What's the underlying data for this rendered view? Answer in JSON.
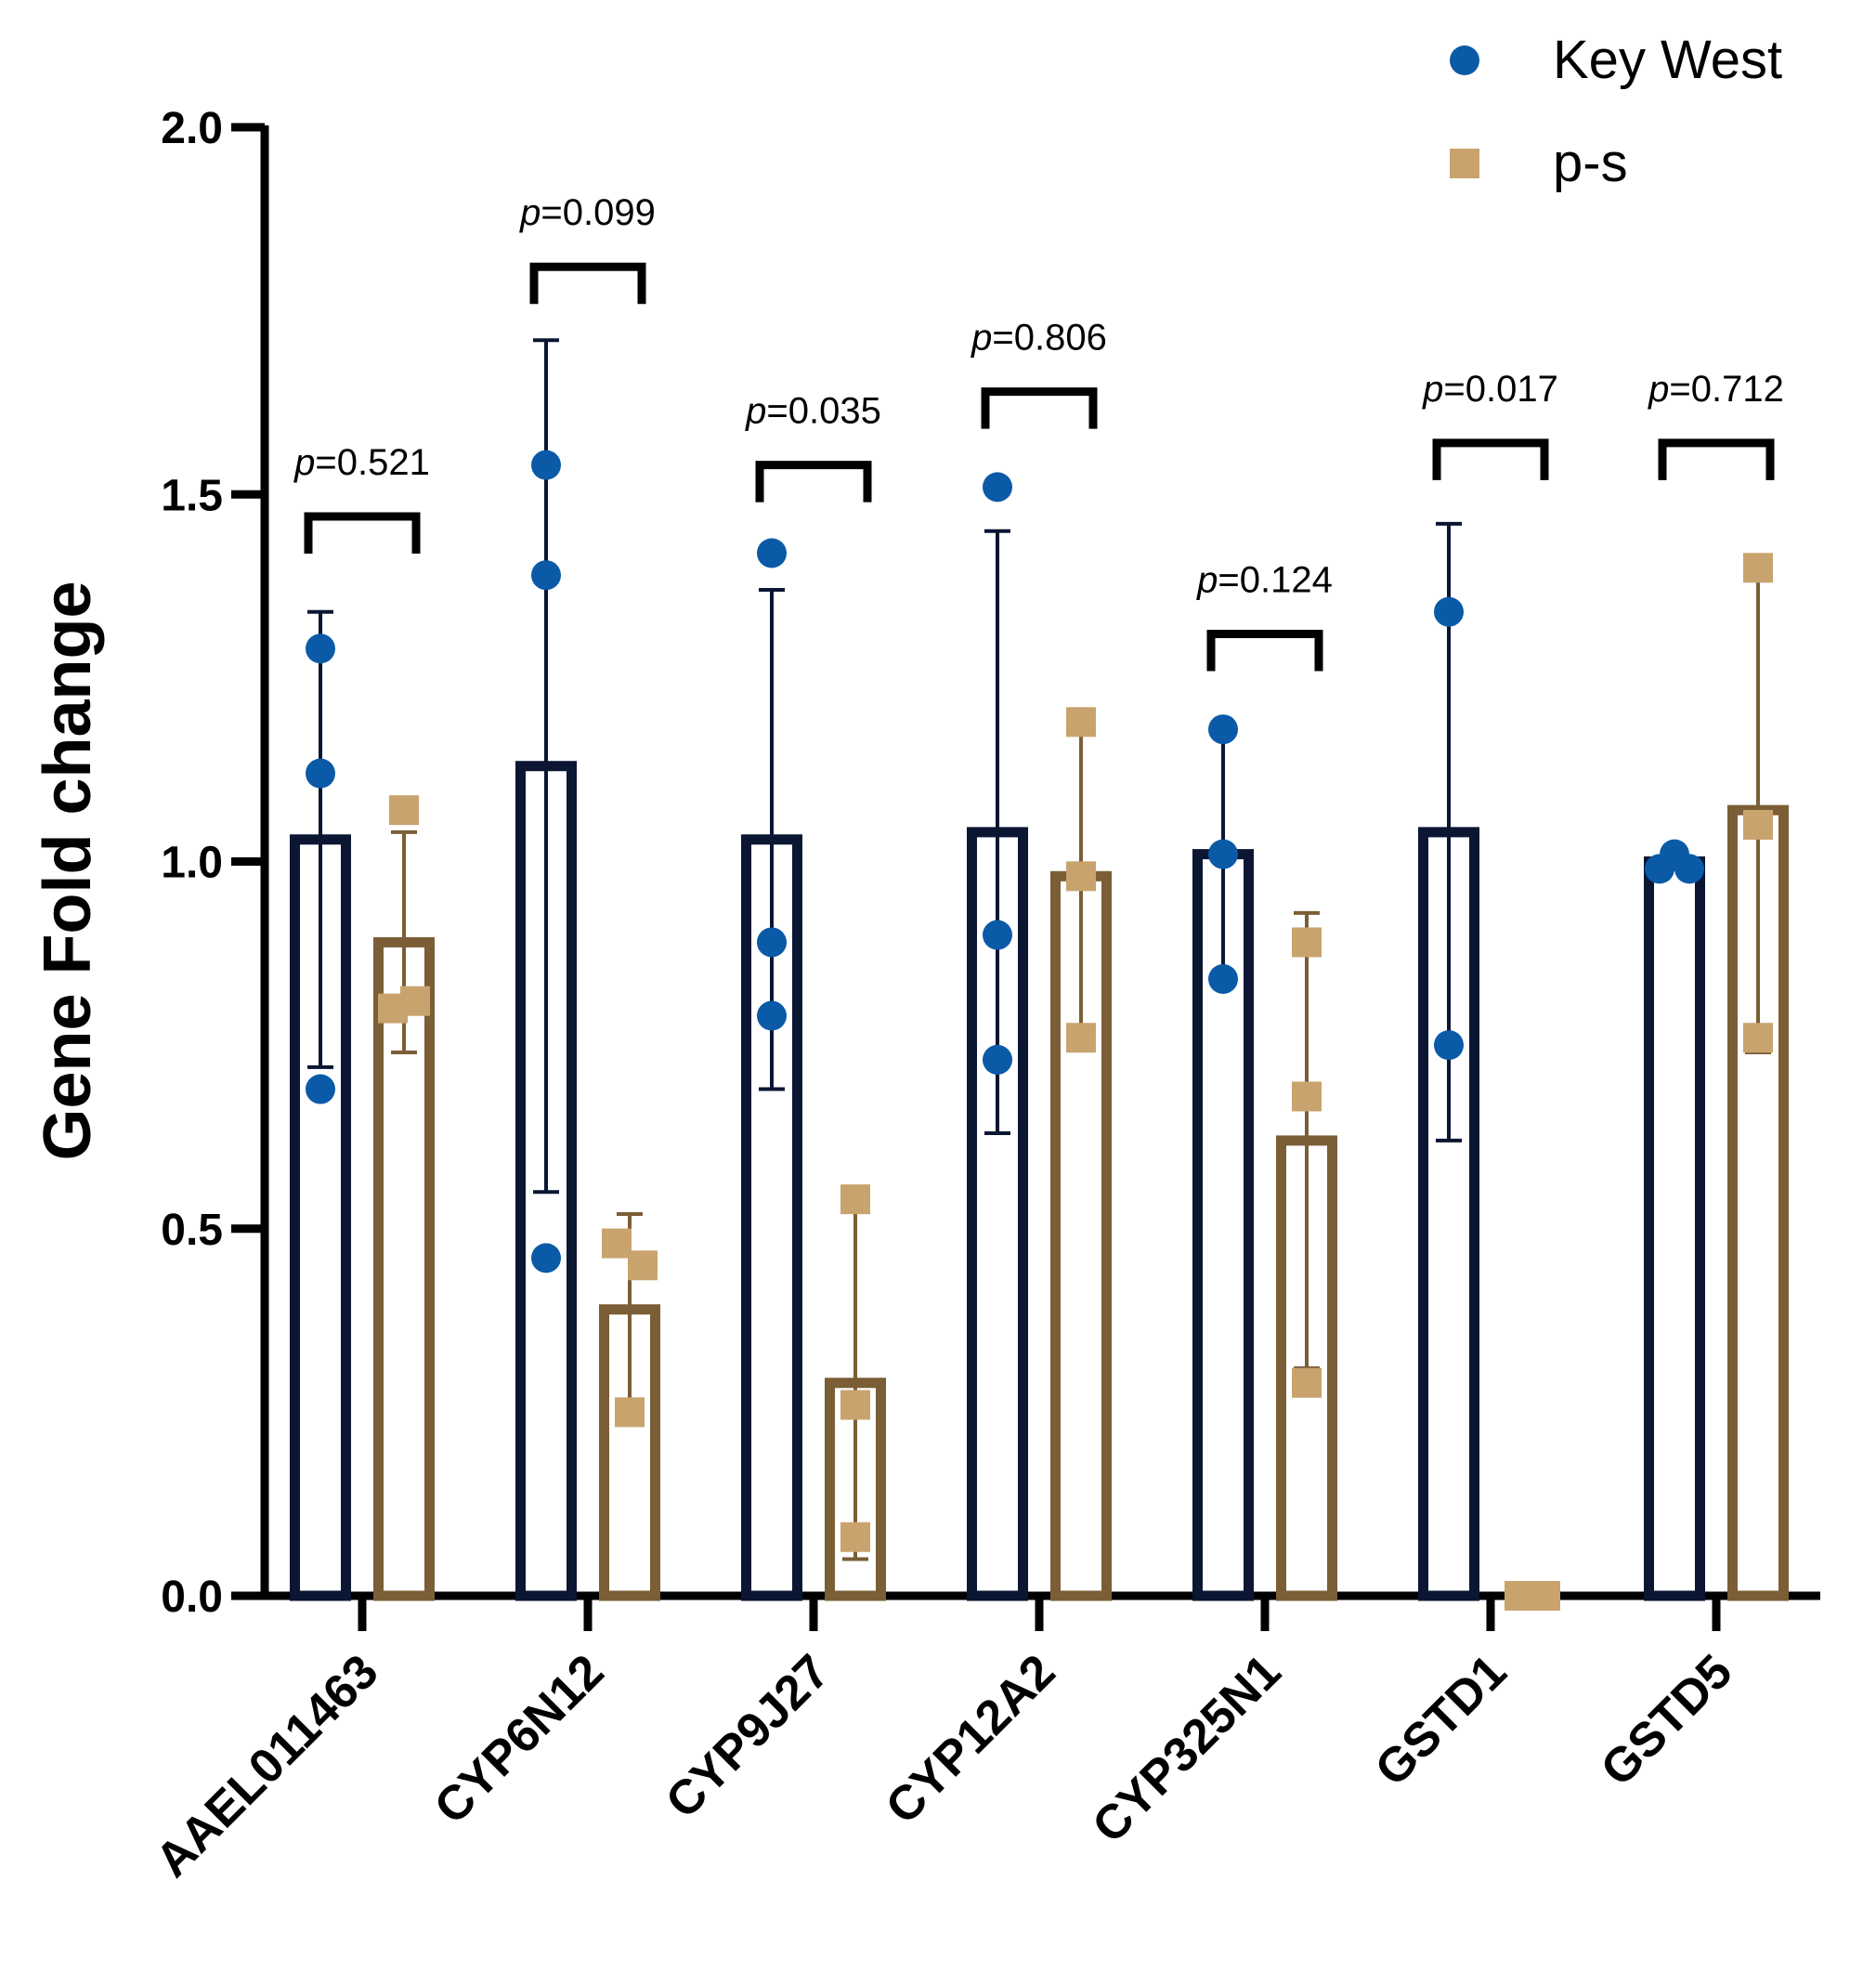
{
  "chart_data": {
    "type": "bar",
    "title": "",
    "xlabel": "",
    "ylabel": "Gene Fold change",
    "ylim": [
      0,
      2.0
    ],
    "yticks": [
      "0.0",
      "0.5",
      "1.0",
      "1.5",
      "2.0"
    ],
    "categories": [
      "AAEL011463",
      "CYP6N12",
      "CYP9J27",
      "CYP12A2",
      "CYP325N1",
      "GSTD1",
      "GSTD5"
    ],
    "series": [
      {
        "name": "Key West",
        "color": "#0b5aa8",
        "bar_color": "#0b1633",
        "marker": "circle",
        "means": [
          1.03,
          1.13,
          1.03,
          1.04,
          1.01,
          1.04,
          1.0
        ],
        "sd": [
          0.31,
          0.58,
          0.34,
          0.41,
          0.17,
          0.42,
          0.01
        ],
        "points": [
          [
            1.29,
            1.12,
            0.69
          ],
          [
            1.54,
            1.39,
            0.46
          ],
          [
            1.42,
            0.89,
            0.79
          ],
          [
            1.51,
            0.9,
            0.73
          ],
          [
            1.18,
            1.01,
            0.84
          ],
          [
            1.34,
            0.75,
            null
          ],
          [
            0.99,
            1.01,
            0.99
          ]
        ]
      },
      {
        "name": "p-s",
        "color": "#c9a36e",
        "bar_color": "#7b5e36",
        "marker": "square",
        "means": [
          0.89,
          0.39,
          0.29,
          0.98,
          0.62,
          0.0,
          1.07
        ],
        "sd": [
          0.15,
          0.13,
          0.24,
          0.21,
          0.31,
          0.0,
          0.33
        ],
        "points": [
          [
            1.07,
            0.81,
            0.8
          ],
          [
            0.48,
            0.45,
            0.25
          ],
          [
            0.54,
            0.26,
            0.08
          ],
          [
            1.19,
            0.98,
            0.76
          ],
          [
            0.89,
            0.68,
            0.29
          ],
          [
            0.0,
            0.0,
            0.0
          ],
          [
            1.4,
            1.05,
            0.76
          ]
        ]
      }
    ],
    "annotations": [
      {
        "category": "AAEL011463",
        "label": "p",
        "value": "=0.521",
        "level": 1.47
      },
      {
        "category": "CYP6N12",
        "label": "p",
        "value": "=0.099",
        "level": 1.81
      },
      {
        "category": "CYP9J27",
        "label": "p",
        "value": "=0.035",
        "level": 1.54
      },
      {
        "category": "CYP12A2",
        "label": "p",
        "value": "=0.806",
        "level": 1.64
      },
      {
        "category": "CYP325N1",
        "label": "p",
        "value": "=0.124",
        "level": 1.31
      },
      {
        "category": "GSTD1",
        "label": "p",
        "value": "=0.017",
        "level": 1.57
      },
      {
        "category": "GSTD5",
        "label": "p",
        "value": "=0.712",
        "level": 1.57
      }
    ],
    "legend_position": "top-right"
  }
}
